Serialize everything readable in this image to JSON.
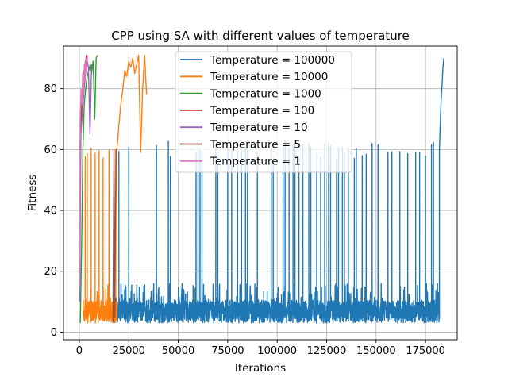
{
  "chart_data": {
    "type": "line",
    "title": "CPP using SA with different values of temperature",
    "xlabel": "Iterations",
    "ylabel": "Fitness",
    "xlim": [
      -8000,
      191000
    ],
    "ylim": [
      -2.5,
      94
    ],
    "xticks": [
      0,
      25000,
      50000,
      75000,
      100000,
      125000,
      150000,
      175000
    ],
    "xtick_labels": [
      "0",
      "25000",
      "50000",
      "75000",
      "100000",
      "125000",
      "150000",
      "175000"
    ],
    "yticks": [
      0,
      20,
      40,
      60,
      80
    ],
    "ytick_labels": [
      "0",
      "20",
      "40",
      "60",
      "80"
    ],
    "grid": true,
    "legend_position": "top-center",
    "series": [
      {
        "name": "Temperature = 100000",
        "color": "#1f77b4",
        "x_range": [
          18000,
          184000
        ],
        "baseline_range": [
          3,
          13
        ],
        "spike_x": [
          19000,
          20000,
          25000,
          39000,
          45000,
          46000,
          59000,
          60000,
          61000,
          62000,
          69000,
          70000,
          75000,
          77000,
          80000,
          82000,
          84000,
          85000,
          90000,
          97000,
          98000,
          103000,
          104000,
          106000,
          108000,
          109000,
          111000,
          113000,
          116000,
          117000,
          120000,
          122000,
          124000,
          126000,
          127000,
          130000,
          131000,
          133000,
          134000,
          136000,
          139000,
          140000,
          143000,
          145000,
          148000,
          151000,
          156000,
          158000,
          162000,
          166000,
          170000,
          172000,
          175000,
          178000,
          179000
        ],
        "spike_peak": [
          60,
          60,
          60,
          60,
          60,
          60,
          60,
          60,
          60,
          60,
          60,
          60,
          60,
          60,
          60,
          60,
          60,
          60,
          60,
          60,
          60,
          60,
          60,
          60,
          60,
          60,
          60,
          60,
          60,
          60,
          60,
          60,
          60,
          60,
          60,
          60,
          60,
          60,
          60,
          60,
          60,
          60,
          60,
          60,
          60,
          60,
          60,
          60,
          60,
          60,
          60,
          60,
          60,
          60,
          60
        ],
        "final_rise": {
          "x": [
            182000,
            182300,
            182600,
            183000,
            183400,
            183800,
            184200
          ],
          "y": [
            60,
            66,
            72,
            78,
            82,
            87,
            90
          ]
        }
      },
      {
        "name": "Temperature = 10000",
        "color": "#ff7f0e",
        "x_range": [
          2000,
          35000
        ],
        "baseline_range": [
          3,
          13
        ],
        "spike_x": [
          3000,
          4000,
          6000,
          8000,
          10000,
          12000,
          15000
        ],
        "spike_peak": [
          60,
          60,
          60,
          60,
          60,
          60,
          60
        ],
        "climb": {
          "x": [
            19000,
            20000,
            21000,
            22000,
            23000,
            24000,
            25000,
            26000,
            27000,
            28000,
            29000,
            30000,
            31000,
            32000,
            33000,
            34000
          ],
          "y": [
            60,
            68,
            75,
            80,
            86,
            84,
            89,
            87,
            90,
            85,
            88,
            91,
            59,
            80,
            91,
            78
          ]
        }
      },
      {
        "name": "Temperature = 1000",
        "color": "#2ca02c",
        "x": [
          500,
          1200,
          1800,
          2500,
          3200,
          4000,
          4800,
          5500,
          6200,
          7000,
          7800,
          8500,
          9200
        ],
        "y": [
          3,
          30,
          60,
          75,
          80,
          84,
          86,
          88,
          85,
          89,
          70,
          90,
          91
        ]
      },
      {
        "name": "Temperature = 100",
        "color": "#d62728",
        "x": [
          300,
          900,
          1500,
          2200,
          2900,
          3600
        ],
        "y": [
          60,
          70,
          78,
          85,
          88,
          91
        ]
      },
      {
        "name": "Temperature = 10",
        "color": "#9467bd",
        "x": [
          200,
          800,
          1500,
          2300,
          3000,
          3800,
          4600,
          5400,
          6200
        ],
        "y": [
          10,
          65,
          72,
          79,
          84,
          90,
          87,
          65,
          88
        ]
      },
      {
        "name": "Temperature = 5",
        "color": "#8c564b",
        "x": [
          17000,
          17500,
          18000,
          18500
        ],
        "y": [
          3,
          60,
          5,
          60
        ]
      },
      {
        "name": "Temperature = 1",
        "color": "#e377c2",
        "x": [
          100,
          500,
          900,
          1300,
          1700,
          2100,
          2500,
          2900,
          3300,
          3700,
          4100
        ],
        "y": [
          15,
          70,
          80,
          75,
          85,
          78,
          88,
          82,
          90,
          86,
          91
        ]
      }
    ]
  }
}
